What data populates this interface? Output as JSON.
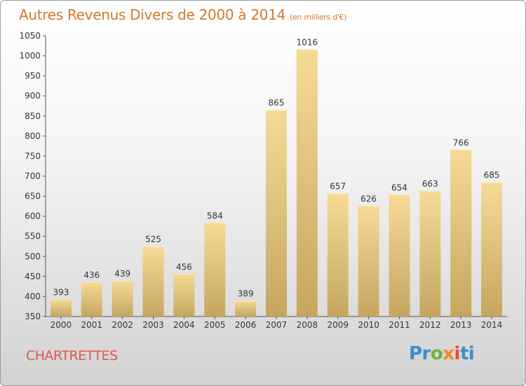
{
  "title": "Autres Revenus Divers de 2000 à 2014",
  "subtitle": "(en milliers d'€)",
  "town": "CHARTRETTES",
  "brand": {
    "parts": [
      "Pr",
      "o",
      "x",
      "i",
      "ti"
    ]
  },
  "colors": {
    "title": "#d07a2a",
    "town": "#e05850",
    "bar_top": "#f6da96",
    "bar_bottom": "#c4a660"
  },
  "chart_data": {
    "type": "bar",
    "title": "Autres Revenus Divers de 2000 à 2014",
    "xlabel": "",
    "ylabel": "",
    "categories": [
      "2000",
      "2001",
      "2002",
      "2003",
      "2004",
      "2005",
      "2006",
      "2007",
      "2008",
      "2009",
      "2010",
      "2011",
      "2012",
      "2013",
      "2014"
    ],
    "values": [
      393,
      436,
      439,
      525,
      456,
      584,
      389,
      865,
      1016,
      657,
      626,
      654,
      663,
      766,
      685
    ],
    "ylim": [
      350,
      1050
    ],
    "yticks": [
      350,
      400,
      450,
      500,
      550,
      600,
      650,
      700,
      750,
      800,
      850,
      900,
      950,
      1000,
      1050
    ],
    "grid": false,
    "legend": "none"
  }
}
